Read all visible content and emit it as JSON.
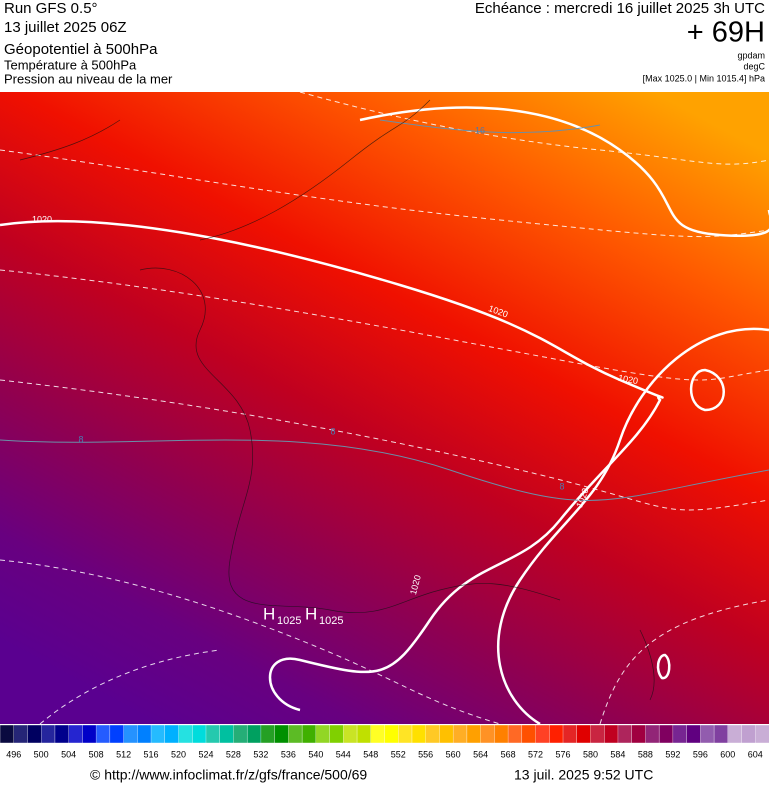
{
  "header": {
    "run": "Run GFS 0.5°",
    "date": "13 juillet 2025 06Z",
    "field1": "Géopotentiel à 500hPa",
    "field2": "Température à 500hPa",
    "field3": "Pression au niveau de la mer",
    "echeance": "Echéance : mercredi 16 juillet 2025 3h UTC",
    "lead": "+ 69H",
    "unit1": "gpdam",
    "unit2": "degC",
    "unit3": "[Max 1025.0 | Min 1015.4] hPa"
  },
  "map": {
    "isobar_labels": [
      "1020",
      "1020",
      "1020",
      "1020",
      "1020"
    ],
    "temp_labels": [
      "16",
      "8",
      "8",
      "8"
    ],
    "highs": [
      {
        "symbol": "H",
        "value": "1025"
      },
      {
        "symbol": "H",
        "value": "1025"
      }
    ]
  },
  "colorbar": {
    "levels": [
      496,
      500,
      504,
      508,
      512,
      516,
      520,
      524,
      528,
      532,
      536,
      540,
      544,
      548,
      552,
      556,
      560,
      564,
      568,
      572,
      576,
      580,
      584,
      588,
      592,
      596,
      600,
      604
    ]
  },
  "footer": {
    "source": "© http://www.infoclimat.fr/z/gfs/france/500/69",
    "timestamp": "13 juil. 2025  9:52 UTC"
  }
}
